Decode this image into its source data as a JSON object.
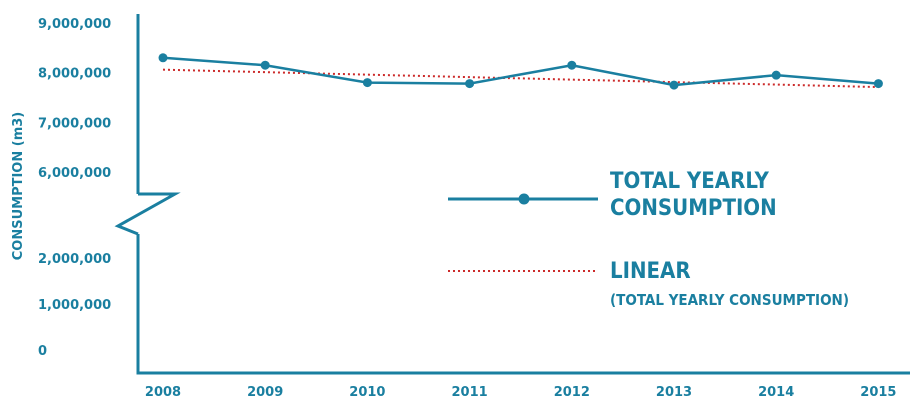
{
  "chart_data": {
    "type": "line",
    "title": "",
    "xlabel": "",
    "ylabel": "CONSUMPTION (m3)",
    "categories": [
      "2008",
      "2009",
      "2010",
      "2011",
      "2012",
      "2013",
      "2014",
      "2015"
    ],
    "series": [
      {
        "name": "TOTAL YEARLY CONSUMPTION",
        "style": "solid line with markers",
        "color": "#1a7fa0",
        "values": [
          8300000,
          8150000,
          7800000,
          7780000,
          8150000,
          7750000,
          7950000,
          7780000
        ]
      },
      {
        "name": "LINEAR (TOTAL YEARLY CONSUMPTION)",
        "style": "dotted trendline",
        "color": "#cc2a2a",
        "values": [
          8060000,
          8010000,
          7960000,
          7910000,
          7860000,
          7810000,
          7760000,
          7710000
        ]
      }
    ],
    "y_ticks": [
      {
        "label": "9,000,000",
        "value": 9000000
      },
      {
        "label": "8,000,000",
        "value": 8000000
      },
      {
        "label": "7,000,000",
        "value": 7000000
      },
      {
        "label": "6,000,000",
        "value": 6000000
      },
      {
        "label": "2,000,000",
        "value": 2000000
      },
      {
        "label": "1,000,000",
        "value": 1000000
      },
      {
        "label": "0",
        "value": 0
      }
    ],
    "axis_break": {
      "from": 2000000,
      "to": 6000000
    },
    "ylim": [
      0,
      9000000
    ],
    "grid": false,
    "legend": {
      "placement": "center-right",
      "entries": [
        {
          "lines": [
            "TOTAL YEARLY",
            "CONSUMPTION"
          ],
          "style": "solid-marker"
        },
        {
          "lines": [
            "LINEAR",
            "(TOTAL YEARLY CONSUMPTION)"
          ],
          "style": "dotted"
        }
      ]
    },
    "colors": {
      "axis": "#1a7fa0",
      "text": "#1a7fa0",
      "series": "#1a7fa0",
      "trend": "#cc2a2a"
    }
  }
}
